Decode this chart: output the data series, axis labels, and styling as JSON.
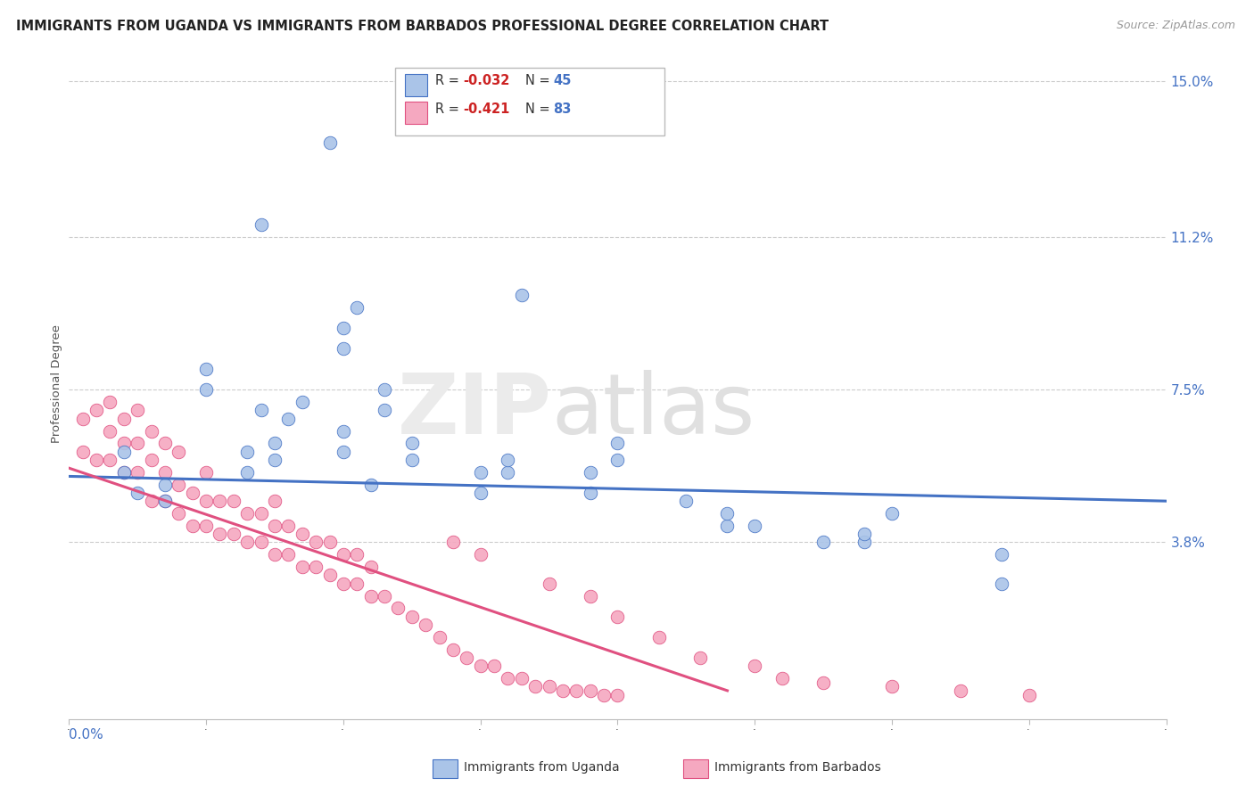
{
  "title": "IMMIGRANTS FROM UGANDA VS IMMIGRANTS FROM BARBADOS PROFESSIONAL DEGREE CORRELATION CHART",
  "source": "Source: ZipAtlas.com",
  "ylabel": "Professional Degree",
  "xlim": [
    0.0,
    0.08
  ],
  "ylim": [
    -0.005,
    0.158
  ],
  "ytick_vals": [
    0.038,
    0.075,
    0.112,
    0.15
  ],
  "ytick_labels": [
    "3.8%",
    "7.5%",
    "11.2%",
    "15.0%"
  ],
  "color_uganda": "#aac4e8",
  "color_barbados": "#f5a8c0",
  "color_line_uganda": "#4472c4",
  "color_line_barbados": "#e05080",
  "color_title": "#222222",
  "color_source": "#999999",
  "color_axis_labels": "#4472c4",
  "uganda_x": [
    0.019,
    0.014,
    0.02,
    0.02,
    0.021,
    0.033,
    0.004,
    0.004,
    0.01,
    0.01,
    0.014,
    0.016,
    0.017,
    0.023,
    0.023,
    0.013,
    0.013,
    0.015,
    0.015,
    0.025,
    0.025,
    0.032,
    0.032,
    0.038,
    0.038,
    0.045,
    0.05,
    0.055,
    0.03,
    0.03,
    0.007,
    0.007,
    0.005,
    0.048,
    0.048,
    0.058,
    0.058,
    0.068,
    0.02,
    0.02,
    0.04,
    0.04,
    0.022,
    0.06,
    0.068
  ],
  "uganda_y": [
    0.135,
    0.115,
    0.09,
    0.085,
    0.095,
    0.098,
    0.055,
    0.06,
    0.075,
    0.08,
    0.07,
    0.068,
    0.072,
    0.07,
    0.075,
    0.055,
    0.06,
    0.058,
    0.062,
    0.058,
    0.062,
    0.055,
    0.058,
    0.05,
    0.055,
    0.048,
    0.042,
    0.038,
    0.05,
    0.055,
    0.048,
    0.052,
    0.05,
    0.042,
    0.045,
    0.038,
    0.04,
    0.035,
    0.06,
    0.065,
    0.058,
    0.062,
    0.052,
    0.045,
    0.028
  ],
  "barbados_x": [
    0.001,
    0.001,
    0.002,
    0.002,
    0.003,
    0.003,
    0.003,
    0.004,
    0.004,
    0.004,
    0.005,
    0.005,
    0.005,
    0.006,
    0.006,
    0.006,
    0.007,
    0.007,
    0.007,
    0.008,
    0.008,
    0.008,
    0.009,
    0.009,
    0.01,
    0.01,
    0.01,
    0.011,
    0.011,
    0.012,
    0.012,
    0.013,
    0.013,
    0.014,
    0.014,
    0.015,
    0.015,
    0.015,
    0.016,
    0.016,
    0.017,
    0.017,
    0.018,
    0.018,
    0.019,
    0.019,
    0.02,
    0.02,
    0.021,
    0.021,
    0.022,
    0.022,
    0.023,
    0.024,
    0.025,
    0.026,
    0.027,
    0.028,
    0.029,
    0.03,
    0.031,
    0.032,
    0.033,
    0.034,
    0.035,
    0.036,
    0.037,
    0.038,
    0.039,
    0.04,
    0.028,
    0.03,
    0.035,
    0.038,
    0.04,
    0.043,
    0.046,
    0.05,
    0.052,
    0.055,
    0.06,
    0.065,
    0.07
  ],
  "barbados_y": [
    0.06,
    0.068,
    0.058,
    0.07,
    0.058,
    0.065,
    0.072,
    0.055,
    0.062,
    0.068,
    0.055,
    0.062,
    0.07,
    0.048,
    0.058,
    0.065,
    0.048,
    0.055,
    0.062,
    0.045,
    0.052,
    0.06,
    0.042,
    0.05,
    0.042,
    0.048,
    0.055,
    0.04,
    0.048,
    0.04,
    0.048,
    0.038,
    0.045,
    0.038,
    0.045,
    0.035,
    0.042,
    0.048,
    0.035,
    0.042,
    0.032,
    0.04,
    0.032,
    0.038,
    0.03,
    0.038,
    0.028,
    0.035,
    0.028,
    0.035,
    0.025,
    0.032,
    0.025,
    0.022,
    0.02,
    0.018,
    0.015,
    0.012,
    0.01,
    0.008,
    0.008,
    0.005,
    0.005,
    0.003,
    0.003,
    0.002,
    0.002,
    0.002,
    0.001,
    0.001,
    0.038,
    0.035,
    0.028,
    0.025,
    0.02,
    0.015,
    0.01,
    0.008,
    0.005,
    0.004,
    0.003,
    0.002,
    0.001
  ],
  "uganda_trend_x": [
    0.0,
    0.08
  ],
  "uganda_trend_y": [
    0.054,
    0.048
  ],
  "barbados_trend_x": [
    0.0,
    0.048
  ],
  "barbados_trend_y": [
    0.056,
    0.002
  ]
}
